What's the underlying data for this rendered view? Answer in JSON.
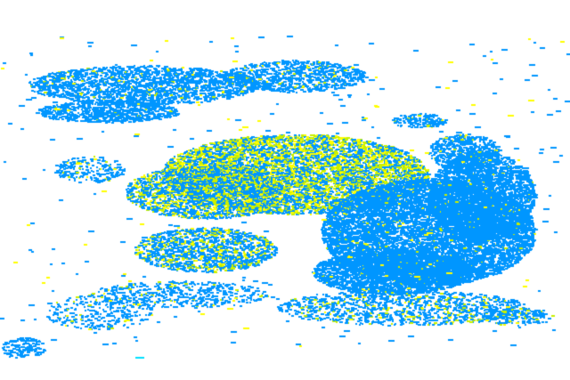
{
  "colors": {
    "background": "#ffffff",
    "low": "#0096ff",
    "medium": "#c8f000",
    "high": "#ffff00",
    "trace": "#00e0ff"
  }
}
